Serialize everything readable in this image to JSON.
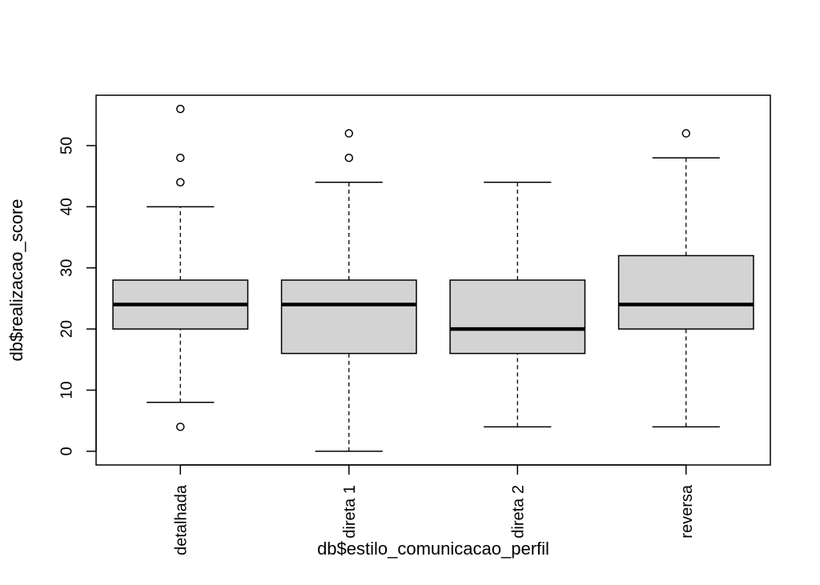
{
  "chart_data": {
    "type": "boxplot",
    "title": "",
    "xlabel": "db$estilo_comunicacao_perfil",
    "ylabel": "db$realizacao_score",
    "ylim": [
      -2.24,
      58.24
    ],
    "yticks": [
      0,
      10,
      20,
      30,
      40,
      50
    ],
    "categories": [
      "detalhada",
      "direta 1",
      "direta 2",
      "reversa"
    ],
    "boxes": [
      {
        "category": "detalhada",
        "whisker_low": 8,
        "q1": 20,
        "median": 24,
        "q3": 28,
        "whisker_high": 40,
        "outliers": [
          4,
          44,
          48,
          56
        ]
      },
      {
        "category": "direta 1",
        "whisker_low": 0,
        "q1": 16,
        "median": 24,
        "q3": 28,
        "whisker_high": 44,
        "outliers": [
          48,
          52
        ]
      },
      {
        "category": "direta 2",
        "whisker_low": 4,
        "q1": 16,
        "median": 20,
        "q3": 28,
        "whisker_high": 44,
        "outliers": []
      },
      {
        "category": "reversa",
        "whisker_low": 4,
        "q1": 20,
        "median": 24,
        "q3": 32,
        "whisker_high": 48,
        "outliers": [
          52
        ]
      }
    ],
    "box_fill": "#d3d3d3",
    "grid": false
  }
}
